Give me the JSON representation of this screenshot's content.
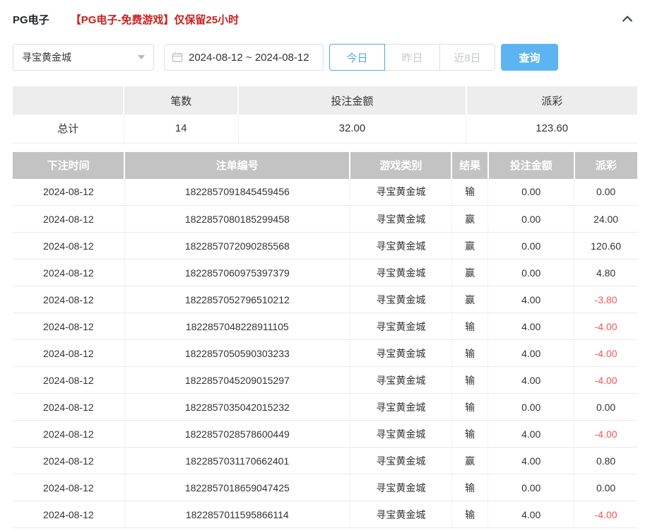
{
  "panel": {
    "title": "PG电子",
    "notice": "【PG电子-免费游戏】仅保留25小时"
  },
  "filters": {
    "game_select": {
      "value": "寻宝黄金城"
    },
    "date_range": {
      "value": "2024-08-12 ~ 2024-08-12"
    },
    "quick_ranges": [
      {
        "label": "今日",
        "active": true
      },
      {
        "label": "昨日",
        "active": false
      },
      {
        "label": "近8日",
        "active": false
      }
    ],
    "search_label": "查询"
  },
  "summary": {
    "headers": [
      "",
      "笔数",
      "投注金额",
      "派彩"
    ],
    "row_label": "总计",
    "count": "14",
    "bet_amount": "32.00",
    "payout": "123.60"
  },
  "table": {
    "headers": [
      "下注时间",
      "注单编号",
      "游戏类别",
      "结果",
      "投注金额",
      "派彩"
    ],
    "rows": [
      {
        "date": "2024-08-12",
        "order_id": "1822857091845459456",
        "game": "寻宝黄金城",
        "result": "输",
        "bet": "0.00",
        "payout": "0.00"
      },
      {
        "date": "2024-08-12",
        "order_id": "1822857080185299458",
        "game": "寻宝黄金城",
        "result": "赢",
        "bet": "0.00",
        "payout": "24.00"
      },
      {
        "date": "2024-08-12",
        "order_id": "1822857072090285568",
        "game": "寻宝黄金城",
        "result": "赢",
        "bet": "0.00",
        "payout": "120.60"
      },
      {
        "date": "2024-08-12",
        "order_id": "1822857060975397379",
        "game": "寻宝黄金城",
        "result": "赢",
        "bet": "0.00",
        "payout": "4.80"
      },
      {
        "date": "2024-08-12",
        "order_id": "1822857052796510212",
        "game": "寻宝黄金城",
        "result": "赢",
        "bet": "4.00",
        "payout": "-3.80"
      },
      {
        "date": "2024-08-12",
        "order_id": "1822857048228911105",
        "game": "寻宝黄金城",
        "result": "输",
        "bet": "4.00",
        "payout": "-4.00"
      },
      {
        "date": "2024-08-12",
        "order_id": "1822857050590303233",
        "game": "寻宝黄金城",
        "result": "输",
        "bet": "4.00",
        "payout": "-4.00"
      },
      {
        "date": "2024-08-12",
        "order_id": "1822857045209015297",
        "game": "寻宝黄金城",
        "result": "输",
        "bet": "4.00",
        "payout": "-4.00"
      },
      {
        "date": "2024-08-12",
        "order_id": "1822857035042015232",
        "game": "寻宝黄金城",
        "result": "输",
        "bet": "0.00",
        "payout": "0.00"
      },
      {
        "date": "2024-08-12",
        "order_id": "1822857028578600449",
        "game": "寻宝黄金城",
        "result": "输",
        "bet": "4.00",
        "payout": "-4.00"
      },
      {
        "date": "2024-08-12",
        "order_id": "1822857031170662401",
        "game": "寻宝黄金城",
        "result": "赢",
        "bet": "4.00",
        "payout": "0.80"
      },
      {
        "date": "2024-08-12",
        "order_id": "1822857018659047425",
        "game": "寻宝黄金城",
        "result": "输",
        "bet": "0.00",
        "payout": "0.00"
      },
      {
        "date": "2024-08-12",
        "order_id": "1822857011595866114",
        "game": "寻宝黄金城",
        "result": "输",
        "bet": "4.00",
        "payout": "-4.00"
      }
    ]
  },
  "colors": {
    "accent_blue": "#5db4f2",
    "active_range_blue": "#53a8e8",
    "notice_red": "#c9201d",
    "negative_red": "#f15656",
    "table_header_gray": "#c3c3c3"
  }
}
